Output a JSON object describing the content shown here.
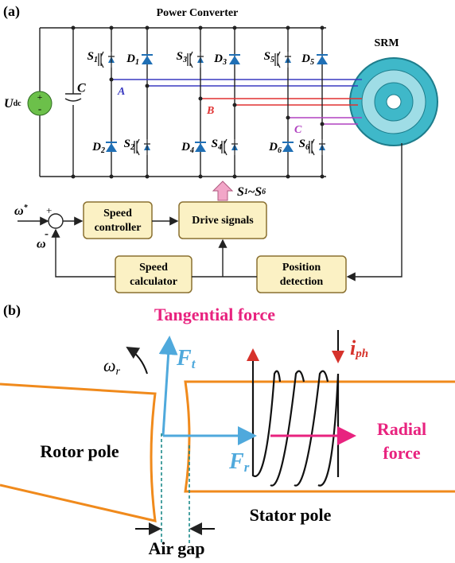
{
  "panel_a": {
    "label": "(a)",
    "title": "Power Converter",
    "motor": "SRM",
    "source": {
      "main": "U",
      "sub": "dc"
    },
    "source_plus": "+",
    "source_minus": "-",
    "capacitor": "C",
    "switches": [
      {
        "main": "S",
        "sub": "1"
      },
      {
        "main": "S",
        "sub": "2"
      },
      {
        "main": "S",
        "sub": "3"
      },
      {
        "main": "S",
        "sub": "4"
      },
      {
        "main": "S",
        "sub": "5"
      },
      {
        "main": "S",
        "sub": "6"
      }
    ],
    "diodes": [
      {
        "main": "D",
        "sub": "1"
      },
      {
        "main": "D",
        "sub": "2"
      },
      {
        "main": "D",
        "sub": "3"
      },
      {
        "main": "D",
        "sub": "4"
      },
      {
        "main": "D",
        "sub": "5"
      },
      {
        "main": "D",
        "sub": "6"
      }
    ],
    "phases": [
      "A",
      "B",
      "C"
    ],
    "signal": {
      "main1": "S",
      "sub1": "1",
      "sep": "~",
      "main2": "S",
      "sub2": "6"
    },
    "reference": {
      "main": "ω",
      "sup": "*"
    },
    "feedback": "ω",
    "plus": "+",
    "minus": "-",
    "blocks": {
      "speed_controller": [
        "Speed",
        "controller"
      ],
      "drive_signals": [
        "Drive signals"
      ],
      "speed_calculator": [
        "Speed",
        "calculator"
      ],
      "position_detection": [
        "Position",
        "detection"
      ]
    }
  },
  "panel_b": {
    "label": "(b)",
    "tangential": "Tangential force",
    "omega": {
      "main": "ω",
      "sub": "r"
    },
    "ft": {
      "main": "F",
      "sub": "t"
    },
    "fr": {
      "main": "F",
      "sub": "r"
    },
    "current": {
      "main": "i",
      "sub": "ph"
    },
    "radial": [
      "Radial",
      "force"
    ],
    "rotor": "Rotor pole",
    "stator": "Stator pole",
    "airgap": "Air gap"
  }
}
